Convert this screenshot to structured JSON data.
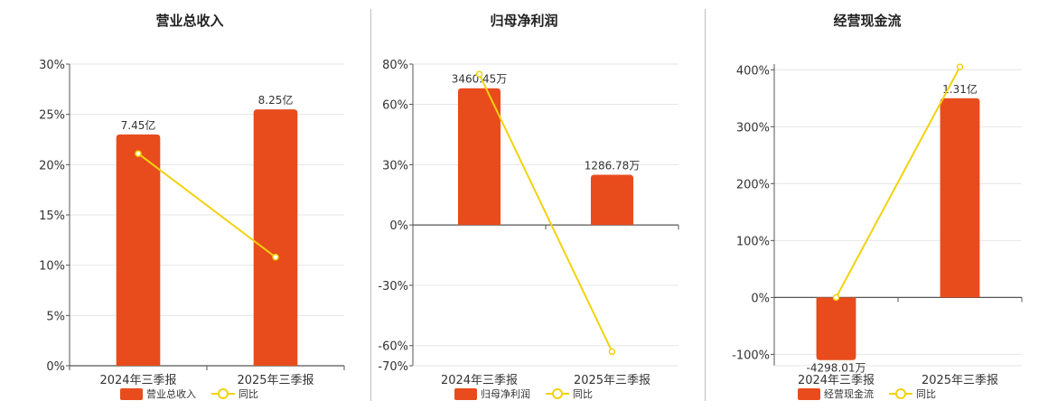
{
  "colors": {
    "bar": "#E84C1C",
    "line": "#F2D20F",
    "grid": "#e6e6e6",
    "axis": "#555555"
  },
  "chart_data": [
    {
      "type": "bar",
      "title": "营业总收入",
      "categories": [
        "2024年三季报",
        "2025年三季报"
      ],
      "series": [
        {
          "name": "营业总收入",
          "type": "bar",
          "values": [
            23,
            25.5
          ],
          "labels": [
            "7.45亿",
            "8.25亿"
          ]
        },
        {
          "name": "同比",
          "type": "line",
          "values": [
            21.1,
            10.8
          ]
        }
      ],
      "ylim": [
        0,
        30
      ],
      "yticks": [
        0,
        5,
        10,
        15,
        20,
        25,
        30
      ],
      "ytick_labels": [
        "0%",
        "5%",
        "10%",
        "15%",
        "20%",
        "25%",
        "30%"
      ],
      "grid": true,
      "legend": "bottom"
    },
    {
      "type": "bar",
      "title": "归母净利润",
      "categories": [
        "2024年三季报",
        "2025年三季报"
      ],
      "series": [
        {
          "name": "归母净利润",
          "type": "bar",
          "values": [
            68,
            25
          ],
          "labels": [
            "3460.45万",
            "1286.78万"
          ]
        },
        {
          "name": "同比",
          "type": "line",
          "values": [
            75,
            -63
          ]
        }
      ],
      "ylim": [
        -70,
        80
      ],
      "yticks": [
        -70,
        -60,
        -30,
        0,
        30,
        60,
        80
      ],
      "ytick_labels": [
        "-70%",
        "-60%",
        "-30%",
        "0%",
        "30%",
        "60%",
        "80%"
      ],
      "grid": true,
      "legend": "bottom"
    },
    {
      "type": "bar",
      "title": "经营现金流",
      "categories": [
        "2024年三季报",
        "2025年三季报"
      ],
      "series": [
        {
          "name": "经营现金流",
          "type": "bar",
          "values": [
            -110,
            350
          ],
          "labels": [
            "-4298.01万",
            "1.31亿"
          ]
        },
        {
          "name": "同比",
          "type": "line",
          "values": [
            0,
            405
          ]
        }
      ],
      "ylim": [
        -120,
        410
      ],
      "yticks": [
        -100,
        0,
        100,
        200,
        300,
        400
      ],
      "ytick_labels": [
        "-100%",
        "0%",
        "100%",
        "200%",
        "300%",
        "400%"
      ],
      "grid": true,
      "legend": "bottom"
    }
  ]
}
